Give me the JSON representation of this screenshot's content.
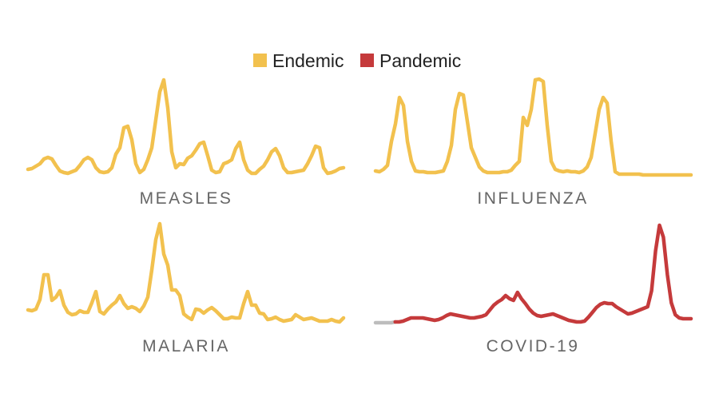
{
  "legend": [
    {
      "label": "Endemic",
      "color": "#f2c14e"
    },
    {
      "label": "Pandemic",
      "color": "#c53a3b"
    }
  ],
  "chart_data": [
    {
      "type": "line",
      "title": "MEASLES",
      "category": "Endemic",
      "axes_visible": false,
      "grid": false,
      "series": [
        {
          "color": "#f2c14e",
          "values": [
            5,
            6,
            9,
            12,
            18,
            20,
            18,
            10,
            3,
            1,
            0,
            2,
            4,
            10,
            17,
            20,
            17,
            7,
            2,
            1,
            2,
            7,
            24,
            32,
            57,
            59,
            42,
            12,
            1,
            5,
            17,
            32,
            67,
            102,
            117,
            82,
            27,
            7,
            12,
            11,
            19,
            22,
            29,
            37,
            39,
            22,
            4,
            1,
            2,
            12,
            14,
            17,
            31,
            39,
            17,
            4,
            0,
            0,
            5,
            9,
            17,
            27,
            31,
            22,
            7,
            1,
            1,
            2,
            3,
            4,
            12,
            22,
            34,
            32,
            7,
            0,
            1,
            3,
            6,
            7
          ]
        }
      ]
    },
    {
      "type": "line",
      "title": "INFLUENZA",
      "category": "Endemic",
      "axes_visible": false,
      "grid": false,
      "series": [
        {
          "color": "#f2c14e",
          "values": [
            3,
            2,
            5,
            10,
            40,
            62,
            95,
            85,
            40,
            15,
            3,
            2,
            2,
            1,
            1,
            1,
            2,
            3,
            15,
            35,
            80,
            100,
            98,
            65,
            32,
            20,
            8,
            3,
            1,
            1,
            1,
            1,
            2,
            2,
            4,
            10,
            15,
            70,
            60,
            80,
            117,
            118,
            115,
            60,
            15,
            5,
            3,
            2,
            3,
            2,
            2,
            1,
            3,
            8,
            20,
            50,
            80,
            95,
            88,
            40,
            2,
            -1,
            -1,
            -1,
            -1,
            -1,
            -1,
            -2,
            -2,
            -2,
            -2,
            -2,
            -2,
            -2,
            -2,
            -2,
            -2,
            -2,
            -2,
            -2
          ]
        }
      ]
    },
    {
      "type": "line",
      "title": "MALARIA",
      "category": "Endemic",
      "axes_visible": false,
      "grid": false,
      "series": [
        {
          "color": "#f2c14e",
          "values": [
            16,
            15,
            17,
            29,
            60,
            60,
            28,
            32,
            40,
            22,
            13,
            10,
            11,
            15,
            13,
            13,
            25,
            39,
            14,
            11,
            17,
            22,
            26,
            34,
            24,
            18,
            20,
            18,
            14,
            21,
            32,
            66,
            104,
            124,
            86,
            72,
            41,
            41,
            34,
            11,
            7,
            4,
            17,
            16,
            12,
            16,
            19,
            15,
            10,
            5,
            5,
            7,
            6,
            6,
            24,
            39,
            22,
            22,
            12,
            11,
            4,
            5,
            7,
            4,
            2,
            3,
            4,
            10,
            7,
            4,
            5,
            6,
            4,
            2,
            2,
            2,
            4,
            2,
            1,
            6
          ]
        }
      ]
    },
    {
      "type": "line",
      "title": "COVID-19",
      "category": "Pandemic",
      "axes_visible": false,
      "grid": false,
      "series": [
        {
          "color": "#bdbdbd",
          "values": [
            0,
            0,
            0,
            0,
            0,
            1
          ]
        },
        {
          "color": "#c53a3b",
          "values": [
            1,
            2,
            4,
            6,
            6,
            6,
            6,
            5,
            4,
            3,
            4,
            6,
            9,
            11,
            10,
            9,
            8,
            7,
            6,
            6,
            7,
            8,
            10,
            16,
            22,
            26,
            29,
            34,
            30,
            28,
            38,
            30,
            24,
            17,
            12,
            9,
            8,
            9,
            10,
            11,
            9,
            7,
            5,
            3,
            2,
            1,
            1,
            2,
            7,
            13,
            19,
            23,
            25,
            24,
            24,
            20,
            17,
            14,
            11,
            12,
            14,
            16,
            18,
            20,
            40,
            90,
            122,
            107,
            60,
            25,
            10,
            6,
            5,
            5,
            5
          ]
        }
      ]
    }
  ]
}
